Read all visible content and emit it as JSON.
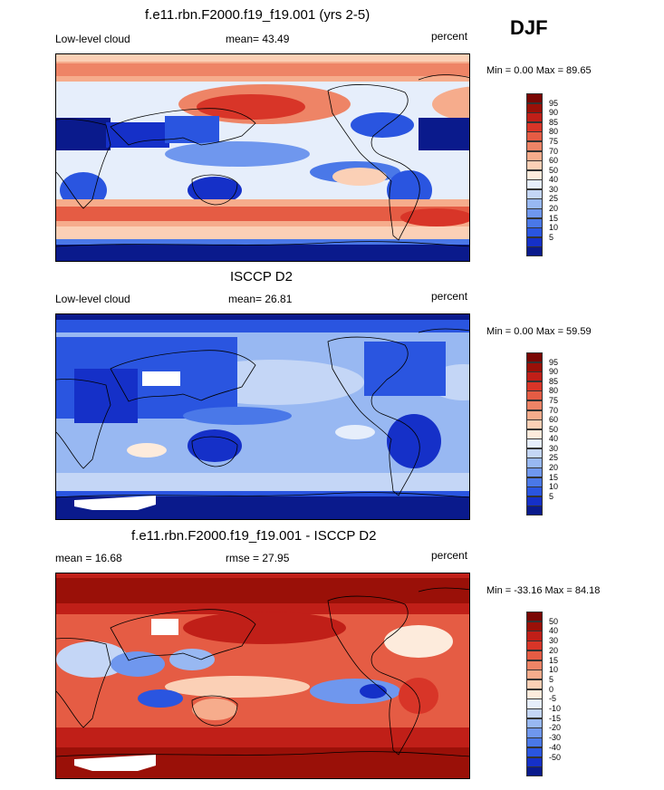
{
  "season": "DJF",
  "colors": {
    "seq": [
      "#0a1a8c",
      "#1530c8",
      "#2a55e0",
      "#4a78e8",
      "#6f97ee",
      "#98b8f2",
      "#c4d6f6",
      "#e6eefb",
      "#fdebdc",
      "#fbd0b6",
      "#f6ac8c",
      "#ee8466",
      "#e55c44",
      "#d83528",
      "#c01f18",
      "#9a1008",
      "#7a0704"
    ],
    "diff": [
      "#0a1a8c",
      "#1530c8",
      "#2a55e0",
      "#4a78e8",
      "#6f97ee",
      "#98b8f2",
      "#c4d6f6",
      "#e6eefb",
      "#fdebdc",
      "#fbd0b6",
      "#f6ac8c",
      "#ee8466",
      "#e55c44",
      "#d83528",
      "#c01f18",
      "#9a1008",
      "#7a0704"
    ]
  },
  "panels": [
    {
      "title": "f.e11.rbn.F2000.f19_f19.001 (yrs 2-5)",
      "left_label": "Low-level cloud",
      "center_label": "mean=  43.49",
      "right_label": "percent",
      "minmax": "Min =   0.00 Max =  89.65",
      "colorbar_labels": [
        "95",
        "90",
        "85",
        "80",
        "75",
        "70",
        "60",
        "50",
        "40",
        "30",
        "25",
        "20",
        "15",
        "10",
        "5"
      ]
    },
    {
      "title": "ISCCP D2",
      "left_label": "Low-level cloud",
      "center_label": "mean=  26.81",
      "right_label": "percent",
      "minmax": "Min =   0.00 Max =  59.59",
      "colorbar_labels": [
        "95",
        "90",
        "85",
        "80",
        "75",
        "70",
        "60",
        "50",
        "40",
        "30",
        "25",
        "20",
        "15",
        "10",
        "5"
      ]
    },
    {
      "title": "f.e11.rbn.F2000.f19_f19.001 - ISCCP D2",
      "left_label": "mean =  16.68",
      "center_label": "rmse =  27.95",
      "right_label": "percent",
      "minmax": "Min = -33.16 Max =  84.18",
      "colorbar_labels": [
        "50",
        "40",
        "30",
        "20",
        "15",
        "10",
        "5",
        "0",
        "-5",
        "-10",
        "-15",
        "-20",
        "-30",
        "-40",
        "-50"
      ]
    }
  ],
  "chart_data": [
    {
      "type": "heatmap",
      "title": "f.e11.rbn.F2000.f19_f19.001 (yrs 2-5)",
      "variable": "Low-level cloud",
      "units": "percent",
      "mean": 43.49,
      "min": 0.0,
      "max": 89.65,
      "levels": [
        5,
        10,
        15,
        20,
        25,
        30,
        40,
        50,
        60,
        70,
        75,
        80,
        85,
        90,
        95
      ]
    },
    {
      "type": "heatmap",
      "title": "ISCCP D2",
      "variable": "Low-level cloud",
      "units": "percent",
      "mean": 26.81,
      "min": 0.0,
      "max": 59.59,
      "levels": [
        5,
        10,
        15,
        20,
        25,
        30,
        40,
        50,
        60,
        70,
        75,
        80,
        85,
        90,
        95
      ]
    },
    {
      "type": "heatmap",
      "title": "f.e11.rbn.F2000.f19_f19.001 - ISCCP D2",
      "units": "percent",
      "mean": 16.68,
      "rmse": 27.95,
      "min": -33.16,
      "max": 84.18,
      "levels": [
        -50,
        -40,
        -30,
        -20,
        -15,
        -10,
        -5,
        0,
        5,
        10,
        15,
        20,
        30,
        40,
        50
      ]
    }
  ]
}
